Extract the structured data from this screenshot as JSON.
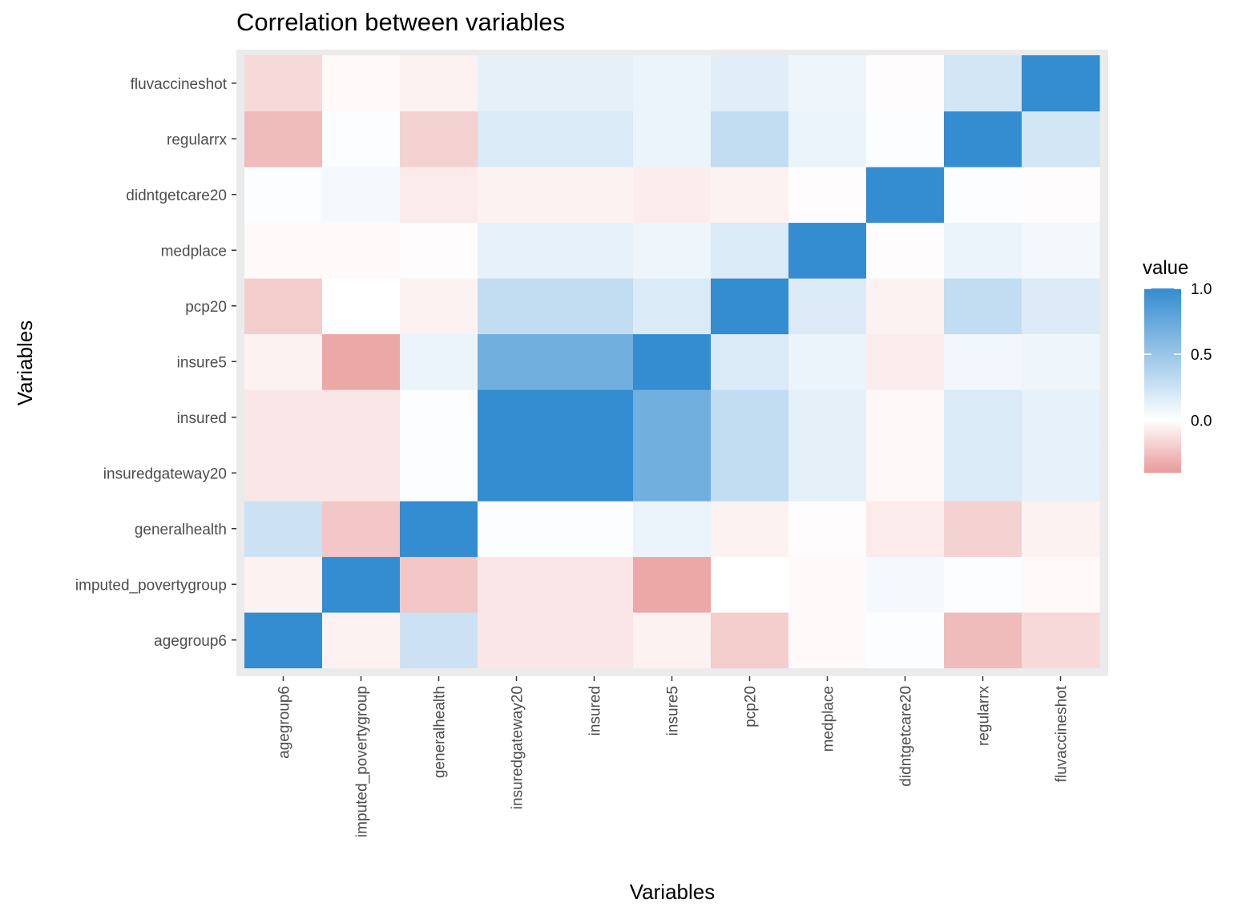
{
  "chart_data": {
    "type": "heatmap",
    "title": "Correlation between variables",
    "xlabel": "Variables",
    "ylabel": "Variables",
    "variables": [
      "agegroup6",
      "imputed_povertygroup",
      "generalhealth",
      "insuredgateway20",
      "insured",
      "insure5",
      "pcp20",
      "medplace",
      "didntgetcare20",
      "regularrx",
      "fluvaccineshot"
    ],
    "values": [
      [
        1.0,
        -0.05,
        0.25,
        -0.1,
        -0.1,
        -0.05,
        -0.2,
        -0.02,
        0.02,
        -0.27,
        -0.15
      ],
      [
        -0.05,
        1.0,
        -0.22,
        -0.1,
        -0.1,
        -0.35,
        0.0,
        -0.02,
        0.05,
        0.02,
        -0.02
      ],
      [
        0.25,
        -0.22,
        1.0,
        0.02,
        0.02,
        0.1,
        -0.05,
        -0.01,
        -0.08,
        -0.18,
        -0.05
      ],
      [
        -0.1,
        -0.1,
        0.02,
        1.0,
        1.0,
        0.7,
        0.3,
        0.12,
        -0.05,
        0.18,
        0.13
      ],
      [
        -0.1,
        -0.1,
        0.02,
        1.0,
        1.0,
        0.7,
        0.3,
        0.12,
        -0.05,
        0.18,
        0.13
      ],
      [
        -0.05,
        -0.35,
        0.1,
        0.7,
        0.7,
        1.0,
        0.18,
        0.08,
        -0.07,
        0.1,
        0.1
      ],
      [
        -0.2,
        0.0,
        -0.05,
        0.3,
        0.3,
        0.18,
        1.0,
        0.18,
        -0.05,
        0.3,
        0.15
      ],
      [
        -0.02,
        -0.02,
        -0.01,
        0.13,
        0.13,
        0.1,
        0.17,
        1.0,
        -0.01,
        0.1,
        0.08
      ],
      [
        0.02,
        0.05,
        -0.08,
        -0.03,
        -0.03,
        -0.07,
        -0.05,
        -0.01,
        1.0,
        0.02,
        -0.01
      ],
      [
        -0.27,
        0.02,
        -0.18,
        0.18,
        0.18,
        0.07,
        0.3,
        0.1,
        0.02,
        1.0,
        0.22
      ],
      [
        -0.15,
        -0.02,
        -0.05,
        0.12,
        0.12,
        0.08,
        0.17,
        0.06,
        -0.01,
        0.22,
        1.0
      ]
    ],
    "legend": {
      "title": "value",
      "ticks": [
        1.0,
        0.5,
        0.0
      ],
      "tick_labels": [
        "1.0",
        "0.5",
        "0.0"
      ],
      "min": -0.4,
      "max": 1.0
    },
    "colors": {
      "low": "#E99A9A",
      "mid": "#FFFFFF",
      "high": "#348CD1",
      "panel_background": "#EBEBEB",
      "grid": "#FFFFFF"
    }
  }
}
